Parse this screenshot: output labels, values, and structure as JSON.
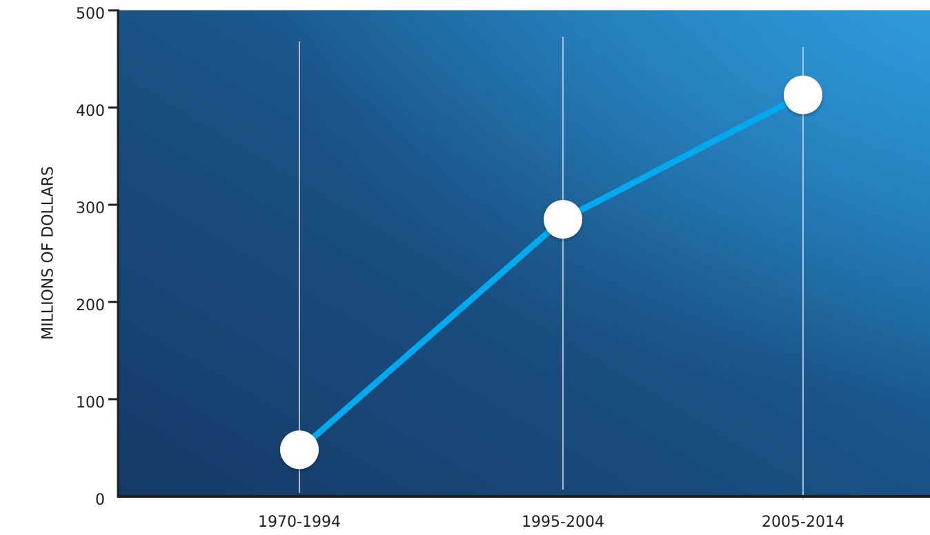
{
  "chart_data": {
    "type": "line",
    "title": "",
    "xlabel": "",
    "ylabel": "MILLIONS OF DOLLARS",
    "categories": [
      "1970-1994",
      "1995-2004",
      "2005-2014"
    ],
    "series": [
      {
        "values": [
          48,
          285,
          413
        ]
      }
    ],
    "ylim": [
      0,
      500
    ],
    "yticks": [
      0,
      100,
      200,
      300,
      400,
      500
    ],
    "grid": "vertical lines at categories",
    "legend": "none"
  },
  "colors": {
    "background_dark": "#163a66",
    "background_light": "#1f8ccc",
    "line": "#03a9ee",
    "marker_fill": "#ffffff",
    "axis": "#1e1e1e",
    "gridline": "#c7d0dc"
  }
}
